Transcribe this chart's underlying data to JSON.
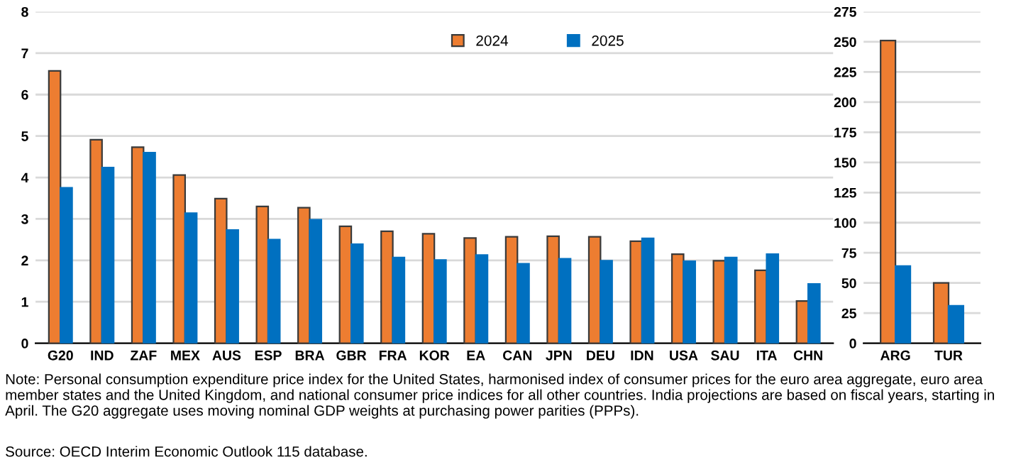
{
  "chart_data": [
    {
      "type": "bar",
      "categories": [
        "G20",
        "IND",
        "ZAF",
        "MEX",
        "AUS",
        "ESP",
        "BRA",
        "GBR",
        "FRA",
        "KOR",
        "EA",
        "CAN",
        "JPN",
        "DEU",
        "IDN",
        "USA",
        "SAU",
        "ITA",
        "CHN"
      ],
      "series": [
        {
          "name": "2024",
          "color": "#ed7d31",
          "values": [
            6.57,
            4.91,
            4.73,
            4.06,
            3.49,
            3.3,
            3.27,
            2.82,
            2.7,
            2.64,
            2.54,
            2.57,
            2.58,
            2.57,
            2.46,
            2.15,
            1.99,
            1.76,
            1.02
          ]
        },
        {
          "name": "2025",
          "color": "#0070c0",
          "values": [
            3.75,
            4.24,
            4.6,
            3.14,
            2.73,
            2.5,
            2.98,
            2.39,
            2.07,
            2.01,
            2.13,
            1.92,
            2.04,
            1.99,
            2.53,
            1.98,
            2.07,
            2.15,
            1.43
          ]
        }
      ],
      "ylim": [
        0,
        8
      ],
      "yticks": [
        0,
        1,
        2,
        3,
        4,
        5,
        6,
        7,
        8
      ],
      "grid": "y",
      "legend": "top",
      "annotations": [
        "Note: Personal consumption expenditure price index for the United States, harmonised index of consumer prices for the euro area aggregate, euro area member states and the United Kingdom, and national consumer price indices for all other countries. India projections are based on fiscal years, starting in April. The G20 aggregate uses moving nominal GDP weights at purchasing power parities (PPPs).",
        "Source: OECD Interim Economic Outlook 115 database."
      ]
    },
    {
      "type": "bar",
      "categories": [
        "ARG",
        "TUR"
      ],
      "series": [
        {
          "color": "#ed7d31",
          "values": [
            251,
            50
          ]
        },
        {
          "color": "#0070c0",
          "values": [
            64,
            31
          ]
        }
      ],
      "ylim": [
        0,
        275
      ],
      "yticks": [
        0,
        25,
        50,
        75,
        100,
        125,
        150,
        175,
        200,
        225,
        250,
        275
      ],
      "grid": "y"
    }
  ]
}
